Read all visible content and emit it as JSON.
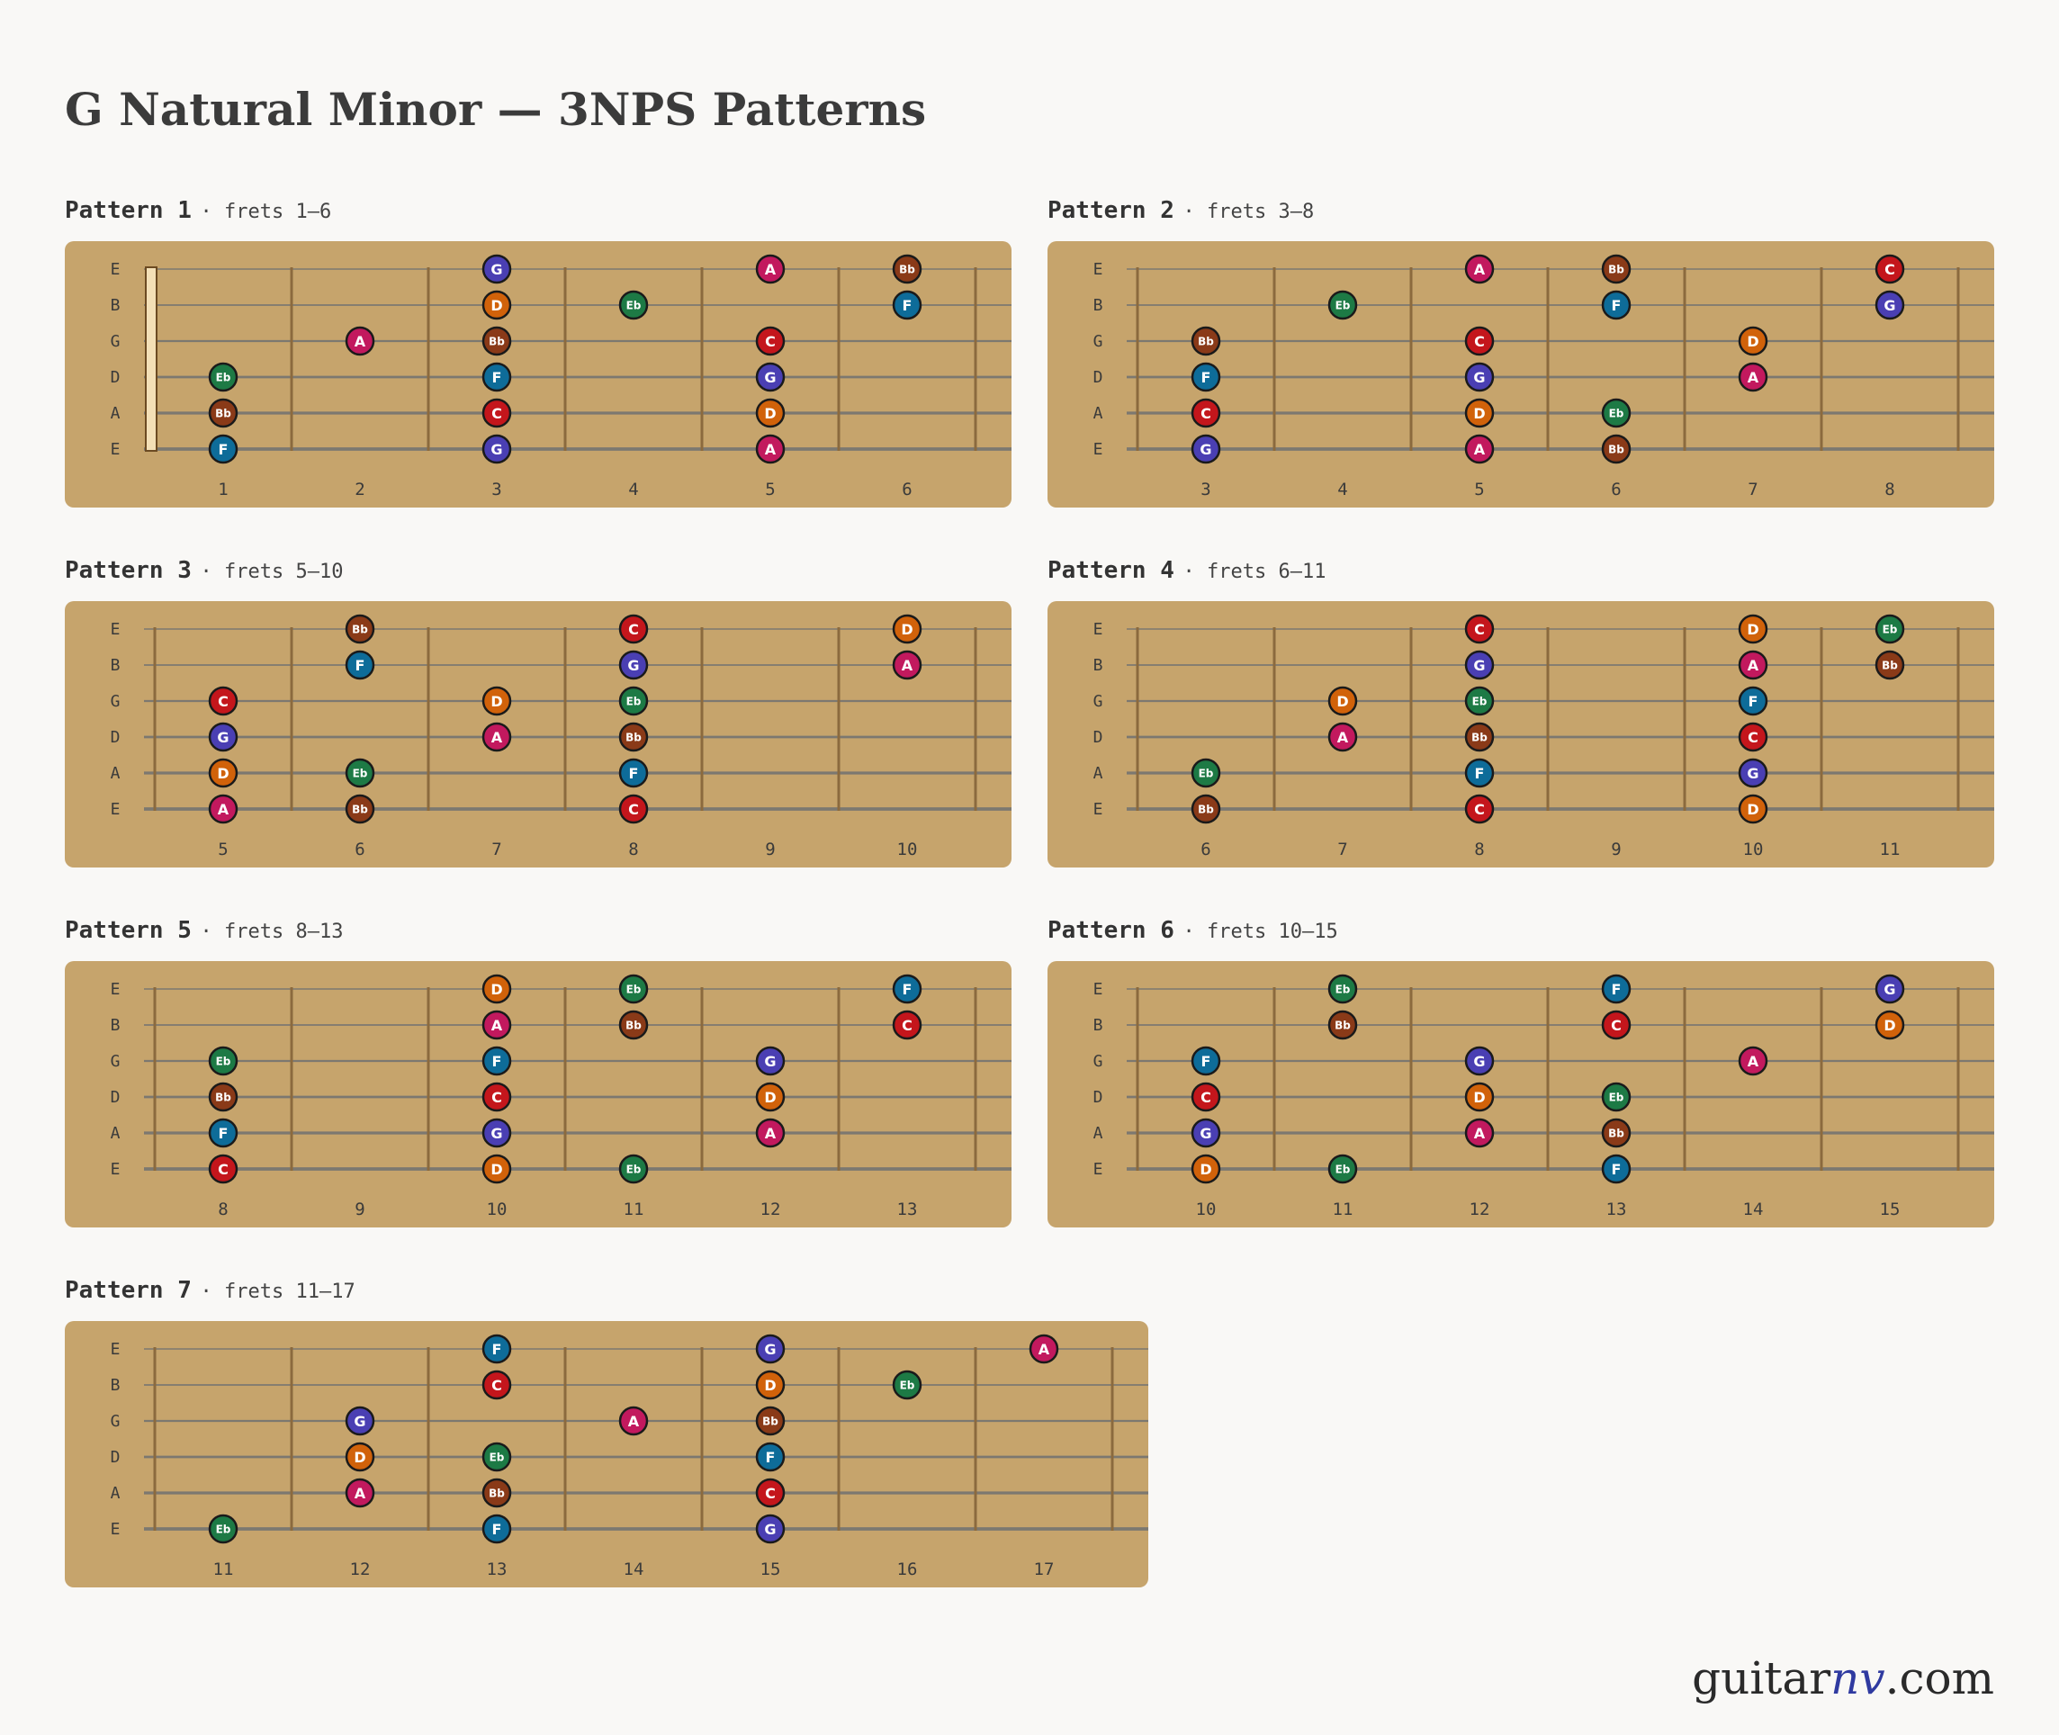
{
  "title": "G Natural Minor — 3NPS Patterns",
  "brand": {
    "name_start": "guitar",
    "name_accent": "nv",
    "name_end": ".com"
  },
  "string_names": [
    "E",
    "B",
    "G",
    "D",
    "A",
    "E"
  ],
  "note_colors": {
    "G": "#4a3fb3",
    "A": "#c2195e",
    "Bb": "#8a3a18",
    "C": "#c4161c",
    "D": "#d1620a",
    "Eb": "#1d7a45",
    "F": "#0e6c99"
  },
  "patterns": [
    {
      "name": "Pattern 1",
      "range": "· frets 1–6",
      "frets": [
        1,
        2,
        3,
        4,
        5,
        6
      ],
      "nut": true,
      "notes": [
        {
          "string": 1,
          "fret": 3,
          "note": "G"
        },
        {
          "string": 1,
          "fret": 5,
          "note": "A"
        },
        {
          "string": 1,
          "fret": 6,
          "note": "Bb"
        },
        {
          "string": 2,
          "fret": 3,
          "note": "D"
        },
        {
          "string": 2,
          "fret": 4,
          "note": "Eb"
        },
        {
          "string": 2,
          "fret": 6,
          "note": "F"
        },
        {
          "string": 3,
          "fret": 2,
          "note": "A"
        },
        {
          "string": 3,
          "fret": 3,
          "note": "Bb"
        },
        {
          "string": 3,
          "fret": 5,
          "note": "C"
        },
        {
          "string": 4,
          "fret": 1,
          "note": "Eb"
        },
        {
          "string": 4,
          "fret": 3,
          "note": "F"
        },
        {
          "string": 4,
          "fret": 5,
          "note": "G"
        },
        {
          "string": 5,
          "fret": 1,
          "note": "Bb"
        },
        {
          "string": 5,
          "fret": 3,
          "note": "C"
        },
        {
          "string": 5,
          "fret": 5,
          "note": "D"
        },
        {
          "string": 6,
          "fret": 1,
          "note": "F"
        },
        {
          "string": 6,
          "fret": 3,
          "note": "G"
        },
        {
          "string": 6,
          "fret": 5,
          "note": "A"
        }
      ]
    },
    {
      "name": "Pattern 2",
      "range": "· frets 3–8",
      "frets": [
        3,
        4,
        5,
        6,
        7,
        8
      ],
      "nut": false,
      "notes": [
        {
          "string": 1,
          "fret": 5,
          "note": "A"
        },
        {
          "string": 1,
          "fret": 6,
          "note": "Bb"
        },
        {
          "string": 1,
          "fret": 8,
          "note": "C"
        },
        {
          "string": 2,
          "fret": 4,
          "note": "Eb"
        },
        {
          "string": 2,
          "fret": 6,
          "note": "F"
        },
        {
          "string": 2,
          "fret": 8,
          "note": "G"
        },
        {
          "string": 3,
          "fret": 3,
          "note": "Bb"
        },
        {
          "string": 3,
          "fret": 5,
          "note": "C"
        },
        {
          "string": 3,
          "fret": 7,
          "note": "D"
        },
        {
          "string": 4,
          "fret": 3,
          "note": "F"
        },
        {
          "string": 4,
          "fret": 5,
          "note": "G"
        },
        {
          "string": 4,
          "fret": 7,
          "note": "A"
        },
        {
          "string": 5,
          "fret": 3,
          "note": "C"
        },
        {
          "string": 5,
          "fret": 5,
          "note": "D"
        },
        {
          "string": 5,
          "fret": 6,
          "note": "Eb"
        },
        {
          "string": 6,
          "fret": 3,
          "note": "G"
        },
        {
          "string": 6,
          "fret": 5,
          "note": "A"
        },
        {
          "string": 6,
          "fret": 6,
          "note": "Bb"
        }
      ]
    },
    {
      "name": "Pattern 3",
      "range": "· frets 5–10",
      "frets": [
        5,
        6,
        7,
        8,
        9,
        10
      ],
      "nut": false,
      "notes": [
        {
          "string": 1,
          "fret": 6,
          "note": "Bb"
        },
        {
          "string": 1,
          "fret": 8,
          "note": "C"
        },
        {
          "string": 1,
          "fret": 10,
          "note": "D"
        },
        {
          "string": 2,
          "fret": 6,
          "note": "F"
        },
        {
          "string": 2,
          "fret": 8,
          "note": "G"
        },
        {
          "string": 2,
          "fret": 10,
          "note": "A"
        },
        {
          "string": 3,
          "fret": 5,
          "note": "C"
        },
        {
          "string": 3,
          "fret": 7,
          "note": "D"
        },
        {
          "string": 3,
          "fret": 8,
          "note": "Eb"
        },
        {
          "string": 4,
          "fret": 5,
          "note": "G"
        },
        {
          "string": 4,
          "fret": 7,
          "note": "A"
        },
        {
          "string": 4,
          "fret": 8,
          "note": "Bb"
        },
        {
          "string": 5,
          "fret": 5,
          "note": "D"
        },
        {
          "string": 5,
          "fret": 6,
          "note": "Eb"
        },
        {
          "string": 5,
          "fret": 8,
          "note": "F"
        },
        {
          "string": 6,
          "fret": 5,
          "note": "A"
        },
        {
          "string": 6,
          "fret": 6,
          "note": "Bb"
        },
        {
          "string": 6,
          "fret": 8,
          "note": "C"
        }
      ]
    },
    {
      "name": "Pattern 4",
      "range": "· frets 6–11",
      "frets": [
        6,
        7,
        8,
        9,
        10,
        11
      ],
      "nut": false,
      "notes": [
        {
          "string": 1,
          "fret": 8,
          "note": "C"
        },
        {
          "string": 1,
          "fret": 10,
          "note": "D"
        },
        {
          "string": 1,
          "fret": 11,
          "note": "Eb"
        },
        {
          "string": 2,
          "fret": 8,
          "note": "G"
        },
        {
          "string": 2,
          "fret": 10,
          "note": "A"
        },
        {
          "string": 2,
          "fret": 11,
          "note": "Bb"
        },
        {
          "string": 3,
          "fret": 7,
          "note": "D"
        },
        {
          "string": 3,
          "fret": 8,
          "note": "Eb"
        },
        {
          "string": 3,
          "fret": 10,
          "note": "F"
        },
        {
          "string": 4,
          "fret": 7,
          "note": "A"
        },
        {
          "string": 4,
          "fret": 8,
          "note": "Bb"
        },
        {
          "string": 4,
          "fret": 10,
          "note": "C"
        },
        {
          "string": 5,
          "fret": 6,
          "note": "Eb"
        },
        {
          "string": 5,
          "fret": 8,
          "note": "F"
        },
        {
          "string": 5,
          "fret": 10,
          "note": "G"
        },
        {
          "string": 6,
          "fret": 6,
          "note": "Bb"
        },
        {
          "string": 6,
          "fret": 8,
          "note": "C"
        },
        {
          "string": 6,
          "fret": 10,
          "note": "D"
        }
      ]
    },
    {
      "name": "Pattern 5",
      "range": "· frets 8–13",
      "frets": [
        8,
        9,
        10,
        11,
        12,
        13
      ],
      "nut": false,
      "notes": [
        {
          "string": 1,
          "fret": 10,
          "note": "D"
        },
        {
          "string": 1,
          "fret": 11,
          "note": "Eb"
        },
        {
          "string": 1,
          "fret": 13,
          "note": "F"
        },
        {
          "string": 2,
          "fret": 10,
          "note": "A"
        },
        {
          "string": 2,
          "fret": 11,
          "note": "Bb"
        },
        {
          "string": 2,
          "fret": 13,
          "note": "C"
        },
        {
          "string": 3,
          "fret": 8,
          "note": "Eb"
        },
        {
          "string": 3,
          "fret": 10,
          "note": "F"
        },
        {
          "string": 3,
          "fret": 12,
          "note": "G"
        },
        {
          "string": 4,
          "fret": 8,
          "note": "Bb"
        },
        {
          "string": 4,
          "fret": 10,
          "note": "C"
        },
        {
          "string": 4,
          "fret": 12,
          "note": "D"
        },
        {
          "string": 5,
          "fret": 8,
          "note": "F"
        },
        {
          "string": 5,
          "fret": 10,
          "note": "G"
        },
        {
          "string": 5,
          "fret": 12,
          "note": "A"
        },
        {
          "string": 6,
          "fret": 8,
          "note": "C"
        },
        {
          "string": 6,
          "fret": 10,
          "note": "D"
        },
        {
          "string": 6,
          "fret": 11,
          "note": "Eb"
        }
      ]
    },
    {
      "name": "Pattern 6",
      "range": "· frets 10–15",
      "frets": [
        10,
        11,
        12,
        13,
        14,
        15
      ],
      "nut": false,
      "notes": [
        {
          "string": 1,
          "fret": 11,
          "note": "Eb"
        },
        {
          "string": 1,
          "fret": 13,
          "note": "F"
        },
        {
          "string": 1,
          "fret": 15,
          "note": "G"
        },
        {
          "string": 2,
          "fret": 11,
          "note": "Bb"
        },
        {
          "string": 2,
          "fret": 13,
          "note": "C"
        },
        {
          "string": 2,
          "fret": 15,
          "note": "D"
        },
        {
          "string": 3,
          "fret": 10,
          "note": "F"
        },
        {
          "string": 3,
          "fret": 12,
          "note": "G"
        },
        {
          "string": 3,
          "fret": 14,
          "note": "A"
        },
        {
          "string": 4,
          "fret": 10,
          "note": "C"
        },
        {
          "string": 4,
          "fret": 12,
          "note": "D"
        },
        {
          "string": 4,
          "fret": 13,
          "note": "Eb"
        },
        {
          "string": 5,
          "fret": 10,
          "note": "G"
        },
        {
          "string": 5,
          "fret": 12,
          "note": "A"
        },
        {
          "string": 5,
          "fret": 13,
          "note": "Bb"
        },
        {
          "string": 6,
          "fret": 10,
          "note": "D"
        },
        {
          "string": 6,
          "fret": 11,
          "note": "Eb"
        },
        {
          "string": 6,
          "fret": 13,
          "note": "F"
        }
      ]
    },
    {
      "name": "Pattern 7",
      "range": "· frets 11–17",
      "frets": [
        11,
        12,
        13,
        14,
        15,
        16,
        17
      ],
      "nut": false,
      "notes": [
        {
          "string": 1,
          "fret": 13,
          "note": "F"
        },
        {
          "string": 1,
          "fret": 15,
          "note": "G"
        },
        {
          "string": 1,
          "fret": 17,
          "note": "A"
        },
        {
          "string": 2,
          "fret": 13,
          "note": "C"
        },
        {
          "string": 2,
          "fret": 15,
          "note": "D"
        },
        {
          "string": 2,
          "fret": 16,
          "note": "Eb"
        },
        {
          "string": 3,
          "fret": 12,
          "note": "G"
        },
        {
          "string": 3,
          "fret": 14,
          "note": "A"
        },
        {
          "string": 3,
          "fret": 15,
          "note": "Bb"
        },
        {
          "string": 4,
          "fret": 12,
          "note": "D"
        },
        {
          "string": 4,
          "fret": 13,
          "note": "Eb"
        },
        {
          "string": 4,
          "fret": 15,
          "note": "F"
        },
        {
          "string": 5,
          "fret": 12,
          "note": "A"
        },
        {
          "string": 5,
          "fret": 13,
          "note": "Bb"
        },
        {
          "string": 5,
          "fret": 15,
          "note": "C"
        },
        {
          "string": 6,
          "fret": 11,
          "note": "Eb"
        },
        {
          "string": 6,
          "fret": 13,
          "note": "F"
        },
        {
          "string": 6,
          "fret": 15,
          "note": "G"
        }
      ]
    }
  ]
}
